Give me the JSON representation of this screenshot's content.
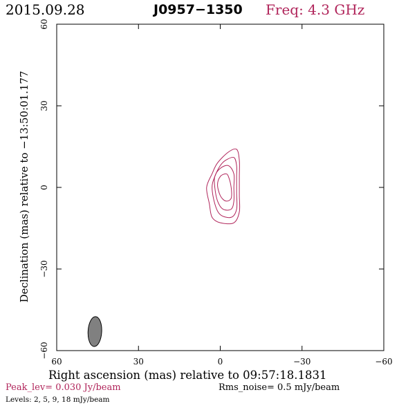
{
  "header": {
    "date": "2015.09.28",
    "source": "J0957−1350",
    "freq": "Freq: 4.3 GHz"
  },
  "axes": {
    "xlabel": "Right ascension (mas) relative to 09:57:18.1831",
    "ylabel": "Declination (mas) relative to −13:50:01.177"
  },
  "footer": {
    "peak": "Peak_lev=  0.030 Jy/beam",
    "rms": "Rms_noise=  0.5 mJy/beam",
    "levels": "Levels:   2,    5,    9,   18 mJy/beam"
  },
  "colors": {
    "contour": "#b0245a",
    "beam_fill": "#808080",
    "accent": "#b0245a"
  },
  "chart_data": {
    "type": "contour",
    "x_range": [
      60,
      -60
    ],
    "y_range": [
      -60,
      60
    ],
    "x_ticks": [
      60,
      30,
      0,
      -30,
      -60
    ],
    "y_ticks": [
      60,
      30,
      0,
      -30,
      -60
    ],
    "x_tick_labels": [
      "60",
      "30",
      "0",
      "−30",
      "−60"
    ],
    "y_tick_labels": [
      "60",
      "30",
      "0",
      "−30",
      "−60"
    ],
    "peak_jy_per_beam": 0.03,
    "rms_noise_mjy_per_beam": 0.5,
    "levels_mjy_per_beam": [
      2,
      5,
      9,
      18
    ],
    "contours": [
      {
        "level": 2,
        "points": [
          [
            -6,
            14
          ],
          [
            -3,
            13
          ],
          [
            1,
            9
          ],
          [
            3,
            5
          ],
          [
            5,
            0
          ],
          [
            4,
            -6
          ],
          [
            3,
            -11
          ],
          [
            0,
            -13
          ],
          [
            -5,
            -13
          ],
          [
            -7,
            -9
          ],
          [
            -7,
            -3
          ],
          [
            -7,
            4
          ],
          [
            -7,
            10
          ]
        ]
      },
      {
        "level": 5,
        "points": [
          [
            -5,
            11
          ],
          [
            -2,
            10
          ],
          [
            0,
            8
          ],
          [
            2,
            4
          ],
          [
            3,
            0
          ],
          [
            2,
            -6
          ],
          [
            0,
            -10
          ],
          [
            -4,
            -11
          ],
          [
            -6,
            -8
          ],
          [
            -6,
            -2
          ],
          [
            -6,
            4
          ],
          [
            -6,
            8
          ]
        ]
      },
      {
        "level": 9,
        "points": [
          [
            -3,
            8
          ],
          [
            0,
            7
          ],
          [
            2,
            4
          ],
          [
            2,
            0
          ],
          [
            1,
            -5
          ],
          [
            -1,
            -8
          ],
          [
            -4,
            -8
          ],
          [
            -5,
            -5
          ],
          [
            -5,
            0
          ],
          [
            -5,
            5
          ]
        ]
      },
      {
        "level": 18,
        "points": [
          [
            -2,
            5
          ],
          [
            0,
            4
          ],
          [
            1,
            1
          ],
          [
            0,
            -3
          ],
          [
            -2,
            -5
          ],
          [
            -4,
            -4
          ],
          [
            -4,
            0
          ],
          [
            -3,
            4
          ]
        ]
      }
    ],
    "beam": {
      "center": [
        46,
        -53
      ],
      "major_mas": 11,
      "minor_mas": 5,
      "pa_deg": -3
    }
  }
}
